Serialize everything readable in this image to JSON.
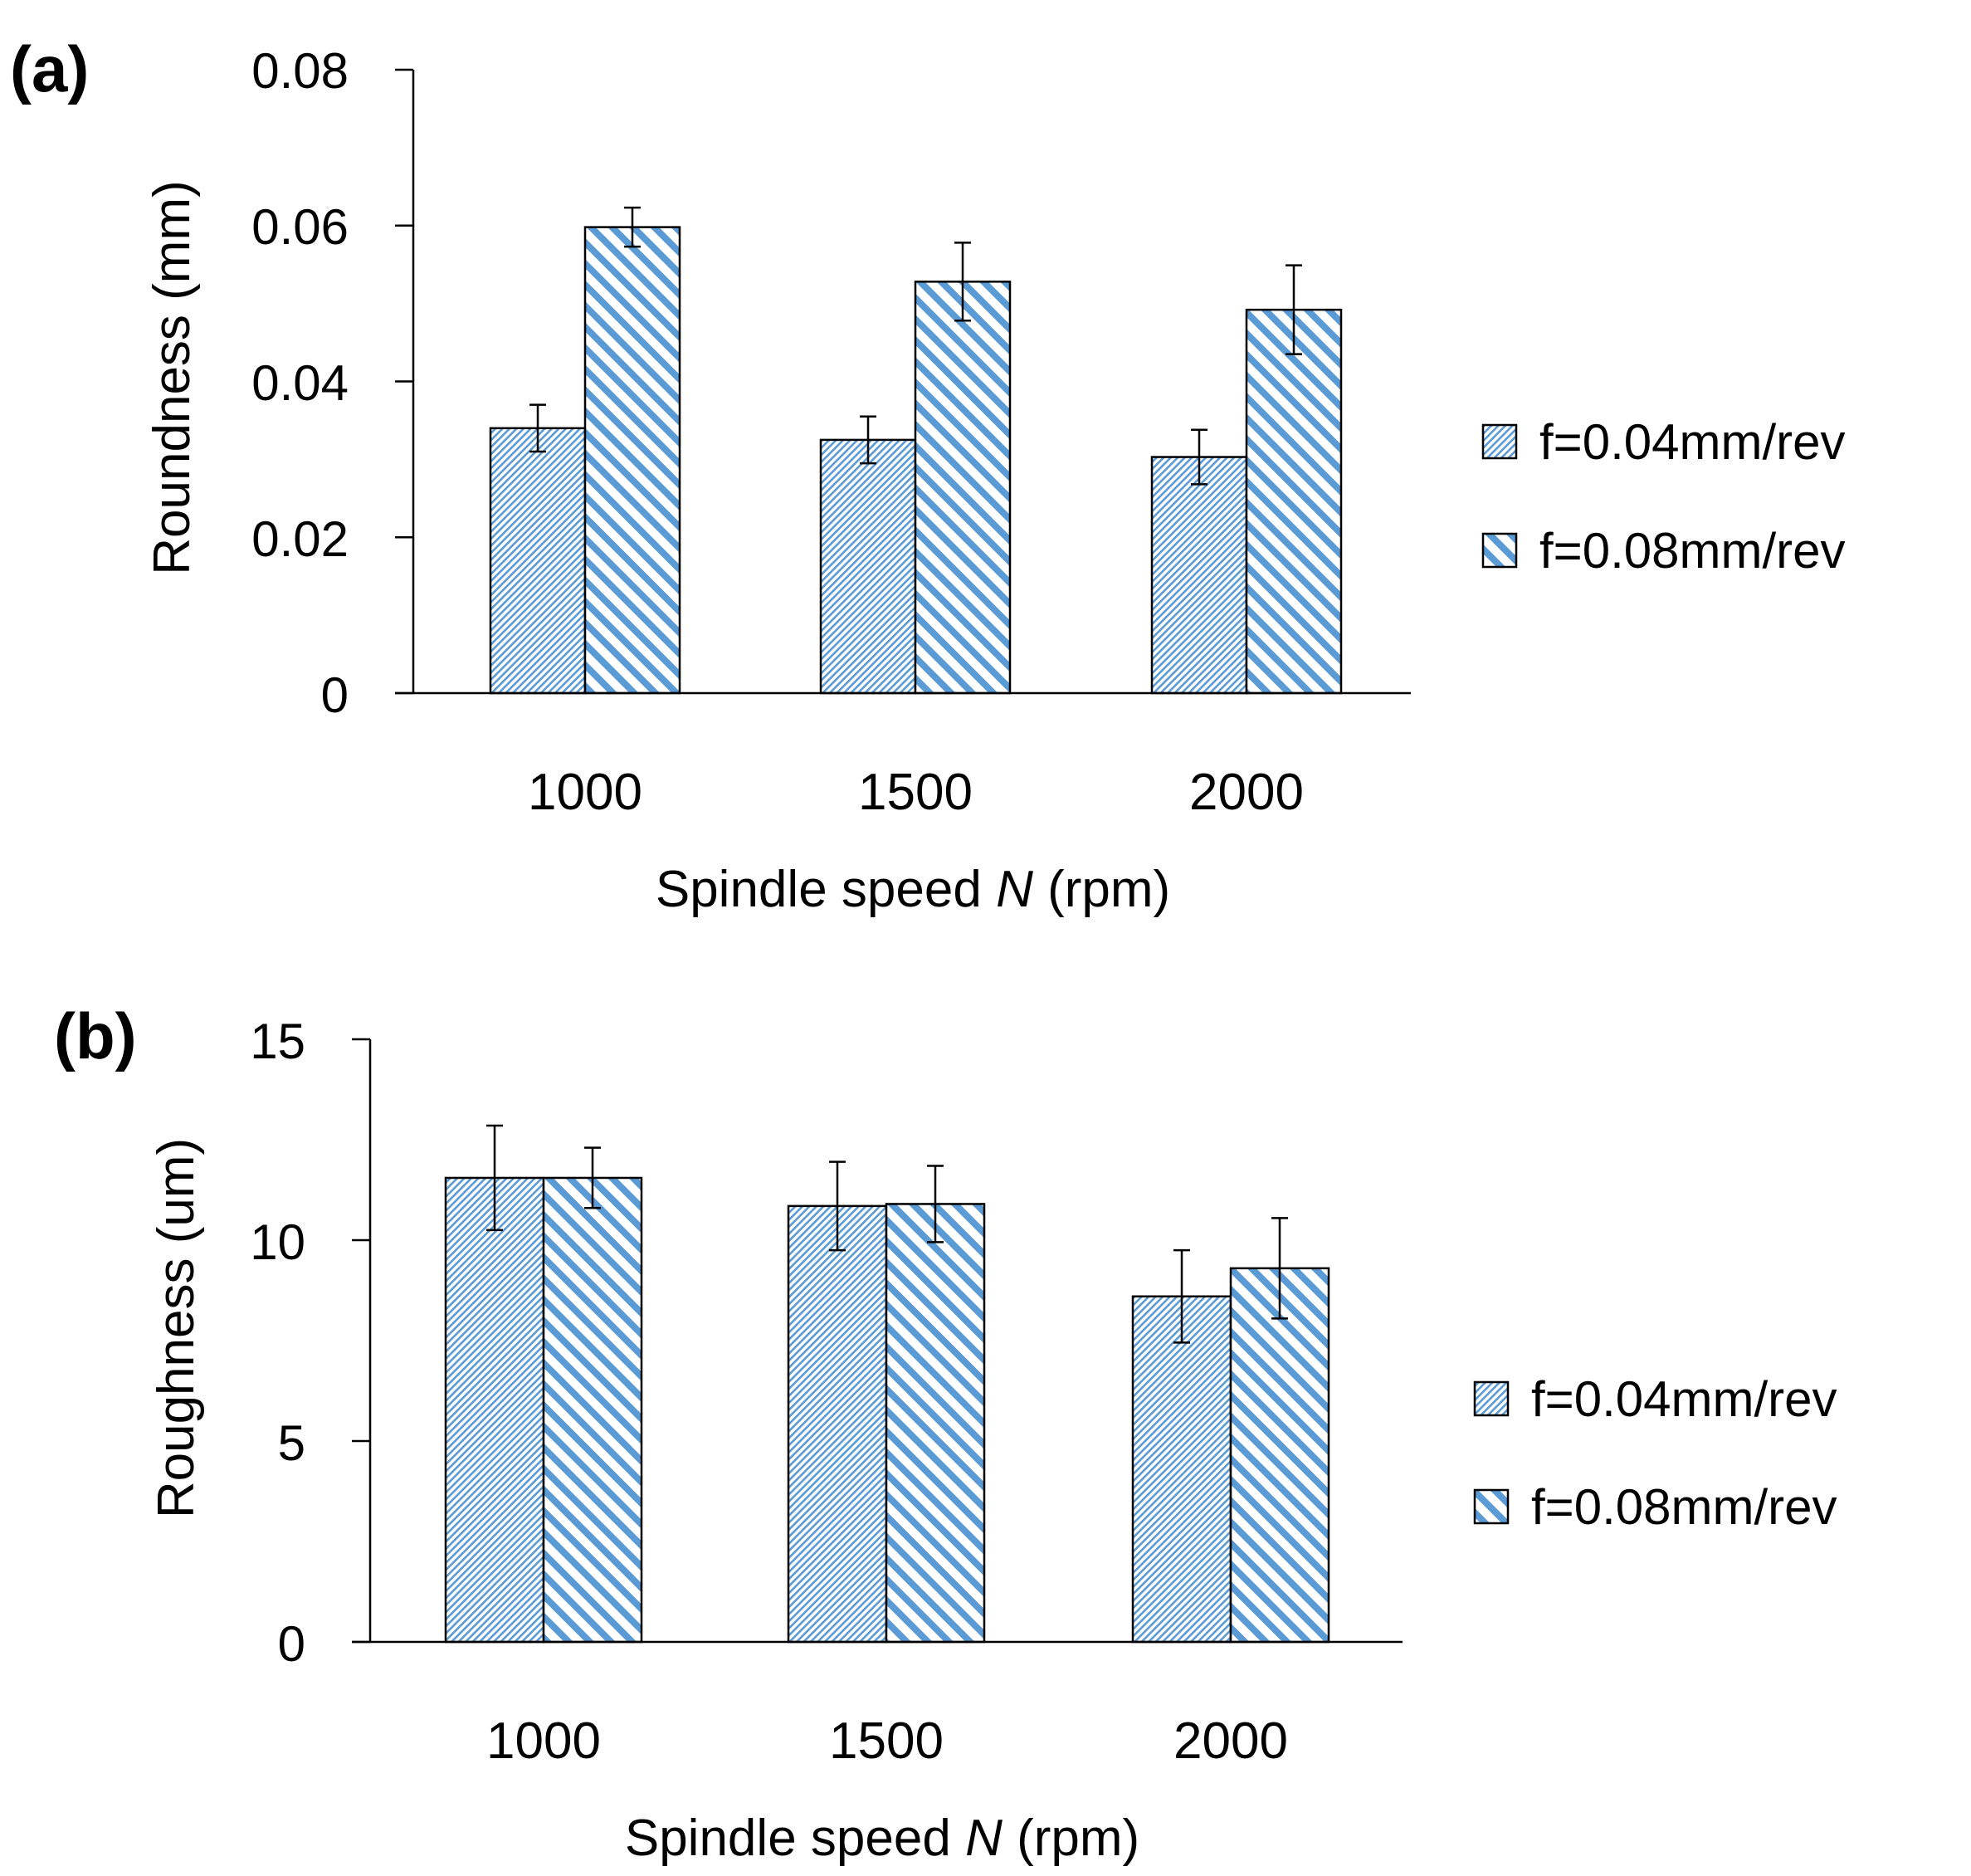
{
  "chart_data": [
    {
      "panel_label": "(a)",
      "type": "bar",
      "title": "",
      "xlabel_prefix": "Spindle speed ",
      "xlabel_var": "N",
      "xlabel_suffix": " (rpm)",
      "ylabel": "Roundness (mm)",
      "ylim": [
        0,
        0.08
      ],
      "yticks": [
        "0",
        "0.02",
        "0.04",
        "0.06",
        "0.08"
      ],
      "ytick_values": [
        0,
        0.02,
        0.04,
        0.06,
        0.08
      ],
      "categories": [
        "1000",
        "1500",
        "2000"
      ],
      "grid": false,
      "legend_position": "right",
      "series": [
        {
          "name": "f=0.04mm/rev",
          "values": [
            0.034,
            0.0325,
            0.0303
          ],
          "errors": [
            0.003,
            0.003,
            0.0035
          ],
          "pattern": "fine-hatch"
        },
        {
          "name": "f=0.08mm/rev",
          "values": [
            0.0598,
            0.0528,
            0.0492
          ],
          "errors": [
            0.0025,
            0.005,
            0.0057
          ],
          "pattern": "wide-hatch"
        }
      ]
    },
    {
      "panel_label": "(b)",
      "type": "bar",
      "title": "",
      "xlabel_prefix": "Spindle speed ",
      "xlabel_var": "N",
      "xlabel_suffix": " (rpm)",
      "ylabel": "Roughness (um)",
      "ylim": [
        0,
        15
      ],
      "yticks": [
        "0",
        "5",
        "10",
        "15"
      ],
      "ytick_values": [
        0,
        5,
        10,
        15
      ],
      "categories": [
        "1000",
        "1500",
        "2000"
      ],
      "grid": false,
      "legend_position": "right",
      "series": [
        {
          "name": "f=0.04mm/rev",
          "values": [
            11.55,
            10.85,
            8.6
          ],
          "errors": [
            1.3,
            1.1,
            1.15
          ],
          "pattern": "fine-hatch"
        },
        {
          "name": "f=0.08mm/rev",
          "values": [
            11.55,
            10.9,
            9.3
          ],
          "errors": [
            0.75,
            0.95,
            1.25
          ],
          "pattern": "wide-hatch"
        }
      ]
    }
  ],
  "colors": {
    "hatch": "#5b9bd5",
    "axis": "#000000",
    "background": "#ffffff"
  }
}
